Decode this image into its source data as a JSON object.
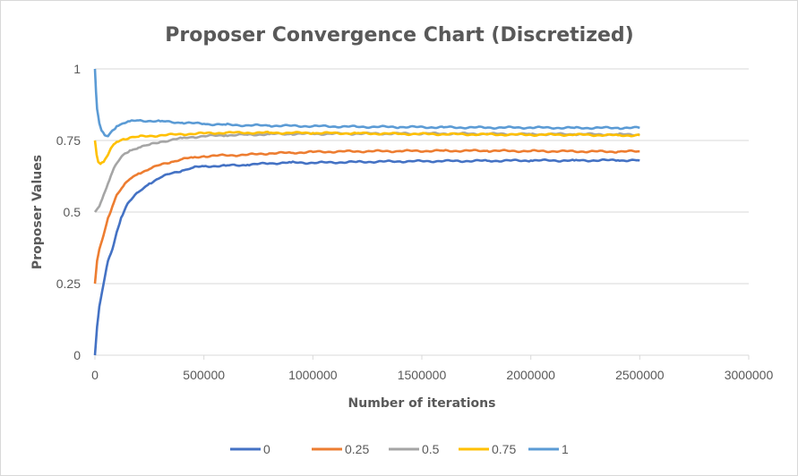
{
  "chart_data": {
    "type": "line",
    "title": "Proposer Convergence Chart (Discretized)",
    "xlabel": "Number of iterations",
    "ylabel": "Proposer Values",
    "xlim": [
      0,
      3000000
    ],
    "ylim": [
      0,
      1
    ],
    "x_ticks": [
      "0",
      "500000",
      "1000000",
      "1500000",
      "2000000",
      "2500000",
      "3000000"
    ],
    "y_ticks": [
      "0",
      "0.25",
      "0.5",
      "0.75",
      "1"
    ],
    "grid": true,
    "legend_position": "bottom",
    "series": [
      {
        "name": "0",
        "color": "#4472C4",
        "points": [
          [
            0,
            0
          ],
          [
            10000,
            0.1
          ],
          [
            20000,
            0.17
          ],
          [
            40000,
            0.25
          ],
          [
            60000,
            0.33
          ],
          [
            80000,
            0.37
          ],
          [
            100000,
            0.43
          ],
          [
            120000,
            0.48
          ],
          [
            150000,
            0.53
          ],
          [
            200000,
            0.57
          ],
          [
            250000,
            0.6
          ],
          [
            300000,
            0.62
          ],
          [
            350000,
            0.635
          ],
          [
            400000,
            0.645
          ],
          [
            450000,
            0.655
          ],
          [
            500000,
            0.66
          ],
          [
            600000,
            0.662
          ],
          [
            700000,
            0.665
          ],
          [
            800000,
            0.67
          ],
          [
            900000,
            0.673
          ],
          [
            1000000,
            0.672
          ],
          [
            1200000,
            0.675
          ],
          [
            1400000,
            0.677
          ],
          [
            1600000,
            0.678
          ],
          [
            1800000,
            0.679
          ],
          [
            2000000,
            0.68
          ],
          [
            2200000,
            0.68
          ],
          [
            2400000,
            0.681
          ],
          [
            2500000,
            0.68
          ]
        ]
      },
      {
        "name": "0.25",
        "color": "#ED7D31",
        "points": [
          [
            0,
            0.25
          ],
          [
            10000,
            0.33
          ],
          [
            20000,
            0.37
          ],
          [
            40000,
            0.42
          ],
          [
            60000,
            0.48
          ],
          [
            80000,
            0.52
          ],
          [
            100000,
            0.56
          ],
          [
            130000,
            0.59
          ],
          [
            160000,
            0.615
          ],
          [
            200000,
            0.635
          ],
          [
            250000,
            0.65
          ],
          [
            300000,
            0.665
          ],
          [
            350000,
            0.675
          ],
          [
            400000,
            0.685
          ],
          [
            450000,
            0.69
          ],
          [
            500000,
            0.695
          ],
          [
            600000,
            0.698
          ],
          [
            700000,
            0.7
          ],
          [
            800000,
            0.705
          ],
          [
            900000,
            0.707
          ],
          [
            1000000,
            0.71
          ],
          [
            1200000,
            0.712
          ],
          [
            1400000,
            0.713
          ],
          [
            1600000,
            0.714
          ],
          [
            1800000,
            0.714
          ],
          [
            2000000,
            0.713
          ],
          [
            2200000,
            0.712
          ],
          [
            2400000,
            0.711
          ],
          [
            2500000,
            0.712
          ]
        ]
      },
      {
        "name": "0.5",
        "color": "#A5A5A5",
        "points": [
          [
            0,
            0.5
          ],
          [
            20000,
            0.52
          ],
          [
            40000,
            0.56
          ],
          [
            60000,
            0.6
          ],
          [
            80000,
            0.64
          ],
          [
            100000,
            0.67
          ],
          [
            130000,
            0.7
          ],
          [
            160000,
            0.715
          ],
          [
            200000,
            0.725
          ],
          [
            250000,
            0.735
          ],
          [
            300000,
            0.745
          ],
          [
            350000,
            0.752
          ],
          [
            400000,
            0.758
          ],
          [
            450000,
            0.762
          ],
          [
            500000,
            0.765
          ],
          [
            600000,
            0.768
          ],
          [
            700000,
            0.77
          ],
          [
            800000,
            0.772
          ],
          [
            900000,
            0.773
          ],
          [
            1000000,
            0.773
          ],
          [
            1200000,
            0.774
          ],
          [
            1400000,
            0.774
          ],
          [
            1600000,
            0.774
          ],
          [
            1800000,
            0.773
          ],
          [
            2000000,
            0.772
          ],
          [
            2200000,
            0.772
          ],
          [
            2400000,
            0.771
          ],
          [
            2500000,
            0.771
          ]
        ]
      },
      {
        "name": "0.75",
        "color": "#FFC000",
        "points": [
          [
            0,
            0.75
          ],
          [
            8000,
            0.7
          ],
          [
            15000,
            0.675
          ],
          [
            25000,
            0.668
          ],
          [
            40000,
            0.675
          ],
          [
            60000,
            0.7
          ],
          [
            80000,
            0.73
          ],
          [
            100000,
            0.745
          ],
          [
            130000,
            0.755
          ],
          [
            160000,
            0.76
          ],
          [
            200000,
            0.763
          ],
          [
            300000,
            0.768
          ],
          [
            400000,
            0.772
          ],
          [
            500000,
            0.775
          ],
          [
            600000,
            0.777
          ],
          [
            700000,
            0.777
          ],
          [
            800000,
            0.777
          ],
          [
            1000000,
            0.776
          ],
          [
            1200000,
            0.775
          ],
          [
            1400000,
            0.773
          ],
          [
            1600000,
            0.772
          ],
          [
            1800000,
            0.771
          ],
          [
            2000000,
            0.77
          ],
          [
            2200000,
            0.77
          ],
          [
            2400000,
            0.768
          ],
          [
            2500000,
            0.768
          ]
        ]
      },
      {
        "name": "1",
        "color": "#5B9BD5",
        "points": [
          [
            0,
            1.0
          ],
          [
            5000,
            0.92
          ],
          [
            10000,
            0.86
          ],
          [
            20000,
            0.81
          ],
          [
            30000,
            0.785
          ],
          [
            45000,
            0.768
          ],
          [
            60000,
            0.765
          ],
          [
            80000,
            0.785
          ],
          [
            100000,
            0.8
          ],
          [
            130000,
            0.81
          ],
          [
            160000,
            0.817
          ],
          [
            200000,
            0.82
          ],
          [
            300000,
            0.817
          ],
          [
            400000,
            0.812
          ],
          [
            500000,
            0.808
          ],
          [
            600000,
            0.805
          ],
          [
            700000,
            0.803
          ],
          [
            800000,
            0.802
          ],
          [
            1000000,
            0.8
          ],
          [
            1200000,
            0.798
          ],
          [
            1400000,
            0.797
          ],
          [
            1600000,
            0.796
          ],
          [
            1800000,
            0.795
          ],
          [
            2000000,
            0.795
          ],
          [
            2200000,
            0.794
          ],
          [
            2400000,
            0.794
          ],
          [
            2500000,
            0.794
          ]
        ]
      }
    ]
  }
}
